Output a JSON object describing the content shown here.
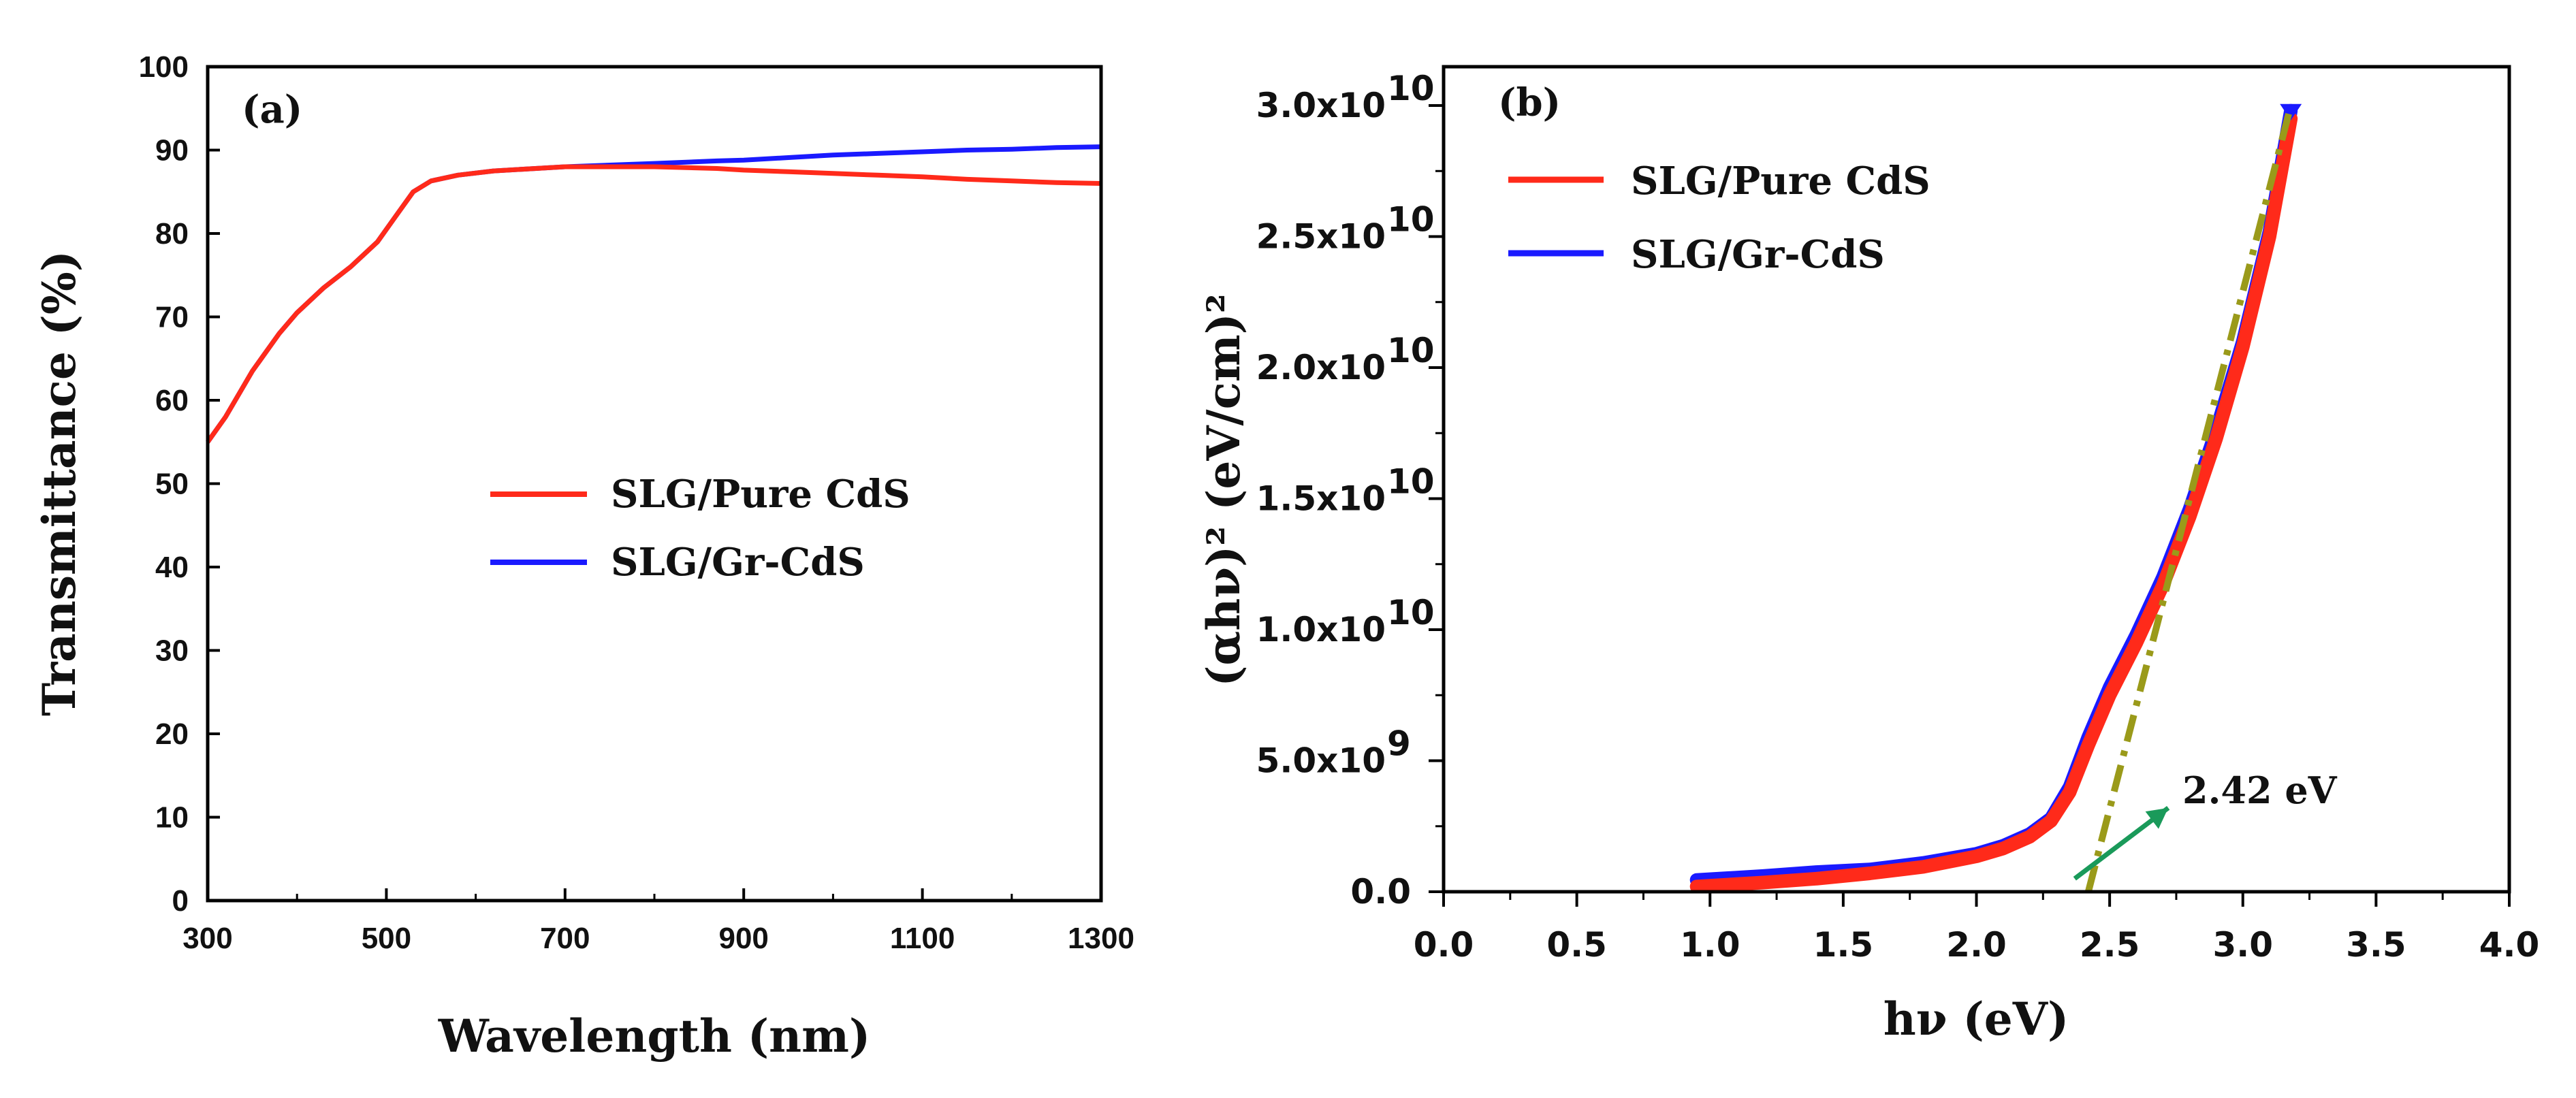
{
  "chart_data": [
    {
      "type": "line",
      "panel_label": "(a)",
      "xlabel": "Wavelength (nm)",
      "ylabel": "Transmittance  (%)",
      "xlim": [
        300,
        1300
      ],
      "ylim": [
        0,
        100
      ],
      "xticks": [
        "300",
        "500",
        "700",
        "900",
        "1100",
        "1300"
      ],
      "yticks": [
        "0",
        "10",
        "20",
        "30",
        "40",
        "50",
        "60",
        "70",
        "80",
        "90",
        "100"
      ],
      "legend_position": "center",
      "series": [
        {
          "name": "SLG/Pure CdS",
          "color": "#ff2a1a",
          "x": [
            300,
            320,
            350,
            380,
            400,
            430,
            460,
            490,
            510,
            530,
            550,
            580,
            620,
            700,
            800,
            870,
            900,
            950,
            1000,
            1050,
            1100,
            1150,
            1200,
            1250,
            1300
          ],
          "y": [
            55.0,
            58.0,
            63.5,
            68.0,
            70.5,
            73.5,
            76.0,
            79.0,
            82.0,
            85.0,
            86.3,
            87.0,
            87.5,
            88.0,
            88.0,
            87.8,
            87.6,
            87.4,
            87.2,
            87.0,
            86.8,
            86.5,
            86.3,
            86.1,
            86.0
          ]
        },
        {
          "name": "SLG/Gr-CdS",
          "color": "#1a1aff",
          "x": [
            300,
            320,
            350,
            380,
            400,
            430,
            460,
            490,
            510,
            530,
            550,
            580,
            620,
            700,
            800,
            870,
            900,
            950,
            1000,
            1050,
            1100,
            1150,
            1200,
            1250,
            1300
          ],
          "y": [
            55.0,
            58.0,
            63.5,
            68.0,
            70.5,
            73.5,
            76.0,
            79.0,
            82.0,
            85.0,
            86.3,
            87.0,
            87.5,
            88.0,
            88.4,
            88.7,
            88.8,
            89.1,
            89.4,
            89.6,
            89.8,
            90.0,
            90.1,
            90.3,
            90.4
          ]
        }
      ]
    },
    {
      "type": "line",
      "panel_label": "(b)",
      "xlabel": "hν (eV)",
      "ylabel": "(αhν)²  (eV/cm)²",
      "xlim": [
        0.0,
        4.0
      ],
      "ylim": [
        0,
        30000000000
      ],
      "xticks": [
        "0.0",
        "0.5",
        "1.0",
        "1.5",
        "2.0",
        "2.5",
        "3.0",
        "3.5",
        "4.0"
      ],
      "yticks": [
        "0.0",
        "5.0x10",
        "1.0x10",
        "1.5x10",
        "2.0x10",
        "2.5x10",
        "3.0x10"
      ],
      "ytick_exponents": [
        "",
        "9",
        "10",
        "10",
        "10",
        "10",
        "10"
      ],
      "ytick_values": [
        0,
        5000000000,
        10000000000,
        15000000000,
        20000000000,
        25000000000,
        30000000000
      ],
      "legend_position": "top-left",
      "series": [
        {
          "name": "SLG/Pure CdS",
          "color": "#ff2a1a",
          "x": [
            0.95,
            1.2,
            1.4,
            1.6,
            1.8,
            2.0,
            2.1,
            2.2,
            2.28,
            2.35,
            2.42,
            2.5,
            2.6,
            2.7,
            2.8,
            2.9,
            3.0,
            3.1,
            3.18
          ],
          "y": [
            200000000,
            350000000,
            500000000,
            700000000,
            950000000,
            1350000000,
            1650000000,
            2100000000,
            2700000000,
            3800000000,
            5600000000,
            7500000000,
            9500000000,
            11700000000,
            14300000000,
            17300000000,
            20800000000,
            25000000000,
            29500000000
          ]
        },
        {
          "name": "SLG/Gr-CdS",
          "color": "#1a1aff",
          "x": [
            0.95,
            1.2,
            1.4,
            1.6,
            1.8,
            2.0,
            2.1,
            2.2,
            2.28,
            2.35,
            2.42,
            2.5,
            2.6,
            2.7,
            2.8,
            2.9,
            3.0,
            3.1,
            3.18
          ],
          "y": [
            450000000,
            600000000,
            750000000,
            850000000,
            1100000000,
            1450000000,
            1750000000,
            2200000000,
            2800000000,
            4000000000,
            5900000000,
            7800000000,
            9800000000,
            12000000000,
            14600000000,
            17600000000,
            21000000000,
            25200000000,
            29800000000
          ]
        }
      ],
      "fit_line": {
        "color": "#9a9a1a",
        "x": [
          2.42,
          3.18
        ],
        "y": [
          0,
          30000000000
        ]
      },
      "annotation": {
        "text": "2.42 eV",
        "color": "#1a9a5a",
        "arrow_from": [
          2.42,
          500000000
        ],
        "arrow_to": [
          2.72,
          3200000000
        ]
      }
    }
  ]
}
